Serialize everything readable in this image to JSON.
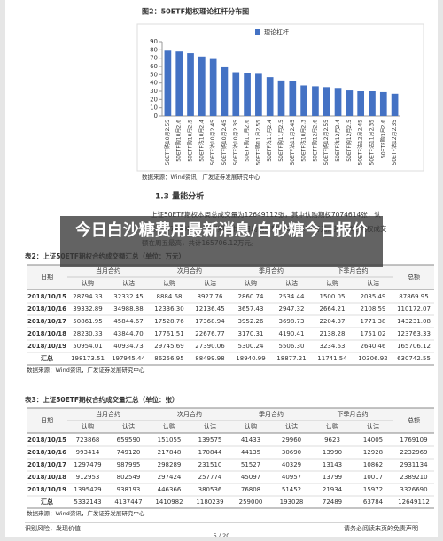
{
  "chart_data": {
    "type": "bar",
    "title": "图2：50ETF期权理论杠杆分布图",
    "legend": "理论杠杆",
    "color": "#4472c4",
    "categories": [
      "50ETF购10月2.55",
      "50ETF购10月2.6",
      "50ETF购10月2.5",
      "50ETF沽10月2.4",
      "50ETF沽10月2.45",
      "50ETF购10月2.45",
      "50ETF沽10月2.35",
      "50ETF购11月2.6",
      "50ETF购11月2.55",
      "50ETF沽11月2.4",
      "50ETF购11月2.5",
      "50ETF沽11月2.45",
      "50ETF沽10月2.3",
      "50ETF购12月2.6",
      "50ETF购12月2.55",
      "50ETF沽12月2.4",
      "50ETF购12月2.5",
      "50ETF沽12月2.45",
      "50ETF沽11月2.35",
      "50ETF购3月2.6",
      "50ETF沽12月2.35"
    ],
    "values": [
      79,
      78,
      76,
      72,
      69,
      59,
      53,
      52,
      51,
      47,
      43,
      42,
      37,
      36,
      35,
      34,
      31,
      30,
      30,
      29,
      27
    ],
    "ylim": [
      0,
      90
    ],
    "yticks": [
      0,
      10,
      20,
      30,
      40,
      50,
      60,
      70,
      80,
      90
    ],
    "source": "数据来源：Wind资讯，广发证券发展研究中心"
  },
  "section": {
    "heading": "1.3 量能分析",
    "paragraph": [
      "上证50ETF期权本周总成交量为12649112张，其中认购期权7074614张，认",
      "沽期权5574498张。本周期权市场日均成交额126148.51万元，其中单日期权成交",
      "额在周五最高，共计165706.12万元。"
    ]
  },
  "overlay_title": "今日白沙糖费用最新消息/白砂糖今日报价",
  "tables": [
    {
      "title": "表2：上证50ETF期权合约成交额汇总（单位：万元）",
      "date_header": "日期",
      "groups": [
        "当月合约",
        "次月合约",
        "季月合约",
        "下季月合约"
      ],
      "subheaders": [
        "认购",
        "认沽"
      ],
      "total_header": "总额",
      "rows": [
        [
          "2018/10/15",
          "28794.33",
          "32332.45",
          "8884.68",
          "8927.76",
          "2860.74",
          "2534.44",
          "1500.05",
          "2035.49",
          "87869.95"
        ],
        [
          "2018/10/16",
          "39332.89",
          "34988.88",
          "12336.30",
          "12136.45",
          "3657.43",
          "2947.32",
          "2664.21",
          "2108.59",
          "110172.07"
        ],
        [
          "2018/10/17",
          "50861.95",
          "45844.67",
          "17528.76",
          "17368.94",
          "3952.26",
          "3698.73",
          "2204.37",
          "1771.38",
          "143231.08"
        ],
        [
          "2018/10/18",
          "28230.33",
          "43844.70",
          "17761.51",
          "22676.77",
          "3170.31",
          "4190.41",
          "2138.28",
          "1751.02",
          "123763.33"
        ],
        [
          "2018/10/19",
          "50954.01",
          "40934.73",
          "29745.69",
          "27390.06",
          "5300.24",
          "5506.30",
          "3234.63",
          "2640.46",
          "165706.12"
        ],
        [
          "汇总",
          "198173.51",
          "197945.44",
          "86256.95",
          "88499.98",
          "18940.99",
          "18877.21",
          "11741.54",
          "10306.92",
          "630742.55"
        ]
      ],
      "source": "数据来源：Wind资讯，广发证券发展研究中心"
    },
    {
      "title": "表3：上证50ETF期权合约成交量汇总（单位：张）",
      "date_header": "日期",
      "groups": [
        "当月合约",
        "次月合约",
        "季月合约",
        "下季月合约"
      ],
      "subheaders": [
        "认购",
        "认沽"
      ],
      "total_header": "总额",
      "rows": [
        [
          "2018/10/15",
          "723868",
          "659590",
          "151055",
          "139575",
          "41433",
          "29960",
          "9623",
          "14005",
          "1769109"
        ],
        [
          "2018/10/16",
          "993414",
          "749120",
          "217848",
          "170844",
          "44135",
          "30690",
          "13990",
          "12928",
          "2232969"
        ],
        [
          "2018/10/17",
          "1297479",
          "987995",
          "298289",
          "231510",
          "51527",
          "40329",
          "13143",
          "10862",
          "2931134"
        ],
        [
          "2018/10/18",
          "912953",
          "802549",
          "297424",
          "257774",
          "45097",
          "40957",
          "13799",
          "10017",
          "2389210"
        ],
        [
          "2018/10/19",
          "1395429",
          "938193",
          "446366",
          "380536",
          "76808",
          "51452",
          "21934",
          "15972",
          "3326690"
        ],
        [
          "汇总",
          "5332143",
          "4137447",
          "1410982",
          "1180239",
          "259000",
          "193028",
          "72489",
          "63784",
          "12649112"
        ]
      ],
      "source": "数据来源：Wind资讯，广发证券发展研究中心"
    }
  ],
  "footer": {
    "left": "识别风险，发现价值",
    "right": "请务必阅读末页的免责声明",
    "page": "5 / 20"
  }
}
